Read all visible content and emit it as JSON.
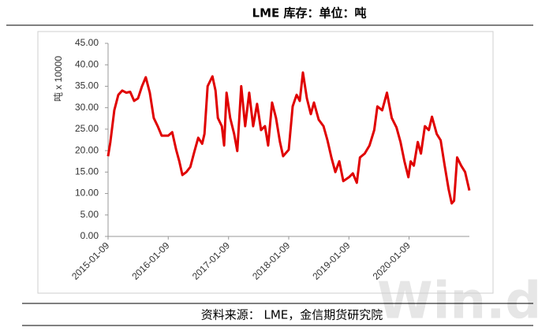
{
  "chart_data": {
    "type": "line",
    "title": "LME 库存：单位：吨",
    "y_label": "吨 x 10000",
    "source": "资料来源：  LME，金信期货研究院",
    "watermark": "Win.d",
    "color": "#e00000",
    "x": [
      "2015-01-09",
      "2015-01-23",
      "2015-02-16",
      "2015-03-12",
      "2015-04-05",
      "2015-04-29",
      "2015-05-23",
      "2015-06-16",
      "2015-07-10",
      "2015-08-03",
      "2015-08-26",
      "2015-09-19",
      "2015-10-13",
      "2015-11-06",
      "2015-11-30",
      "2016-01-09",
      "2016-02-02",
      "2016-02-26",
      "2016-03-16",
      "2016-04-04",
      "2016-04-28",
      "2016-05-22",
      "2016-06-15",
      "2016-07-09",
      "2016-08-02",
      "2016-08-16",
      "2016-09-04",
      "2016-10-03",
      "2016-10-22",
      "2016-11-05",
      "2016-11-29",
      "2016-12-13",
      "2016-12-28",
      "2017-01-19",
      "2017-02-12",
      "2017-03-03",
      "2017-03-27",
      "2017-04-20",
      "2017-05-14",
      "2017-06-07",
      "2017-07-01",
      "2017-07-25",
      "2017-08-18",
      "2017-09-06",
      "2017-09-30",
      "2017-10-24",
      "2017-11-17",
      "2017-12-06",
      "2018-01-09",
      "2018-02-02",
      "2018-02-26",
      "2018-03-17",
      "2018-04-05",
      "2018-04-29",
      "2018-05-23",
      "2018-06-11",
      "2018-07-10",
      "2018-08-08",
      "2018-09-01",
      "2018-09-25",
      "2018-10-19",
      "2018-11-12",
      "2018-12-06",
      "2019-01-09",
      "2019-02-02",
      "2019-02-26",
      "2019-03-17",
      "2019-04-15",
      "2019-05-14",
      "2019-06-12",
      "2019-07-01",
      "2019-07-30",
      "2019-08-28",
      "2019-09-26",
      "2019-10-25",
      "2019-11-18",
      "2019-12-12",
      "2020-01-05",
      "2020-01-19",
      "2020-02-07",
      "2020-03-02",
      "2020-03-21",
      "2020-04-14",
      "2020-05-08",
      "2020-05-27",
      "2020-06-25",
      "2020-07-19",
      "2020-08-12",
      "2020-09-05",
      "2020-09-24",
      "2020-10-08",
      "2020-10-27",
      "2020-11-20",
      "2020-12-14",
      "2021-01-09"
    ],
    "values": [
      18.7,
      22,
      29.4,
      33,
      34,
      33.5,
      33.7,
      31.6,
      32.2,
      35,
      37.1,
      33.5,
      27.6,
      25.7,
      23.5,
      23.5,
      24.3,
      20.2,
      17.5,
      14.3,
      15,
      16.2,
      19.7,
      23,
      21.6,
      23.9,
      35,
      37.3,
      34,
      27.6,
      25.7,
      21.2,
      33.5,
      27.6,
      23.9,
      19.9,
      35,
      25.7,
      33.5,
      25.7,
      30.9,
      24.8,
      25.7,
      21.2,
      31.2,
      27.6,
      22,
      18.7,
      20.2,
      30.3,
      33,
      31.6,
      38.2,
      32.2,
      28.5,
      31.2,
      27.2,
      25.7,
      22.4,
      18.4,
      15,
      17.5,
      12.9,
      13.8,
      14.7,
      12.5,
      18.4,
      19.3,
      21.2,
      24.8,
      30.3,
      29.4,
      33.5,
      27.6,
      25.4,
      22,
      17.5,
      13.8,
      17.5,
      16.5,
      22,
      19.3,
      25.7,
      24.8,
      27.9,
      23.9,
      22.4,
      16.5,
      11,
      7.7,
      8.3,
      18.4,
      16.5,
      15,
      10.7
    ],
    "xlim": [
      "2015-01-09",
      "2021-01-09"
    ],
    "xticks": [
      "2015-01-09",
      "2016-01-09",
      "2017-01-09",
      "2018-01-09",
      "2019-01-09",
      "2020-01-09"
    ],
    "ylim": [
      0,
      45
    ],
    "yticks": [
      {
        "value": 0,
        "label": "0.00"
      },
      {
        "value": 5,
        "label": "5.00"
      },
      {
        "value": 10,
        "label": "10.00"
      },
      {
        "value": 15,
        "label": "15.00"
      },
      {
        "value": 20,
        "label": "20.00"
      },
      {
        "value": 25,
        "label": "25.00"
      },
      {
        "value": 30,
        "label": "30.00"
      },
      {
        "value": 35,
        "label": "35.00"
      },
      {
        "value": 40,
        "label": "40.00"
      },
      {
        "value": 45,
        "label": "45.00"
      }
    ]
  }
}
